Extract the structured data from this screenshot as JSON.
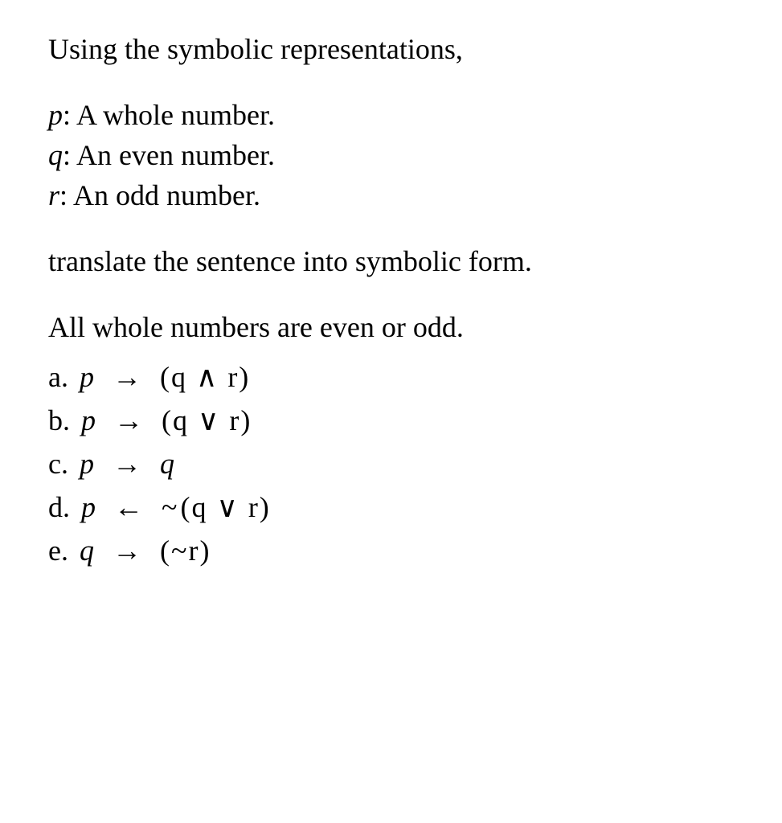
{
  "intro": "Using the symbolic representations,",
  "definitions": [
    {
      "var": "p",
      "text": ": A whole number."
    },
    {
      "var": "q",
      "text": ": An even number."
    },
    {
      "var": "r",
      "text": ": An odd number."
    }
  ],
  "instruction": "translate the sentence into symbolic form.",
  "sentence": "All whole numbers are even or odd.",
  "options": [
    {
      "label": "a.",
      "lhs": "p",
      "arrow": "→",
      "prefix": "",
      "rhs": "(q ∧ r)"
    },
    {
      "label": "b.",
      "lhs": "p",
      "arrow": "→",
      "prefix": "",
      "rhs": "(q ∨ r)"
    },
    {
      "label": "c.",
      "lhs": "p",
      "arrow": "→",
      "prefix": "",
      "rhs": "q"
    },
    {
      "label": "d.",
      "lhs": "p",
      "arrow": "←",
      "prefix": "~",
      "rhs": "(q ∨ r)"
    },
    {
      "label": "e.",
      "lhs": "q",
      "arrow": "→",
      "prefix": "",
      "rhs": "(~r)"
    }
  ],
  "colors": {
    "background": "#ffffff",
    "text": "#000000"
  },
  "fontsize": {
    "body": 36
  }
}
